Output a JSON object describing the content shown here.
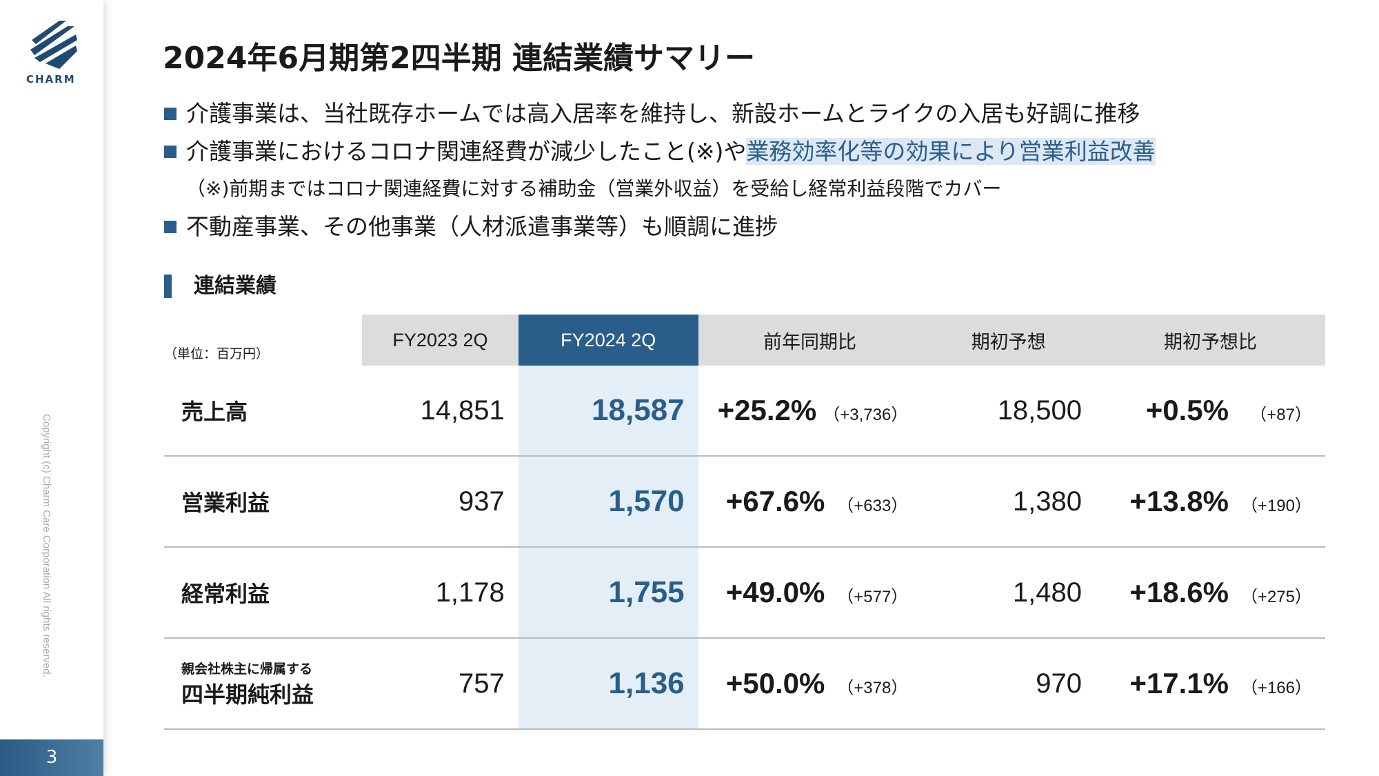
{
  "logo": "CHARM",
  "page_number": "3",
  "copyright": "Copyright (c) Charm Care Corporation All rights reserved.",
  "title": "2024年6月期第2四半期 連結業績サマリー",
  "bullets": [
    {
      "text": "介護事業は、当社既存ホームでは高入居率を維持し、新設ホームとライクの入居も好調に推移"
    },
    {
      "text": "介護事業におけるコロナ関連経費が減少したこと(※)や",
      "highlight": "業務効率化等の効果により営業利益改善",
      "note": "（※)前期まではコロナ関連経費に対する補助金（営業外収益）を受給し経常利益段階でカバー"
    },
    {
      "text": "不動産事業、その他事業（人材派遣事業等）も順調に進捗"
    }
  ],
  "section": "連結業績",
  "table": {
    "unit": "（単位：百万円）",
    "headers": [
      "FY2023 2Q",
      "FY2024 2Q",
      "前年同期比",
      "期初予想",
      "期初予想比"
    ],
    "rows": [
      {
        "label": "売上高",
        "cells": [
          "14,851",
          "18,587",
          "+25.2%",
          "（+3,736）",
          "18,500",
          "+0.5%",
          "（+87）"
        ]
      },
      {
        "label": "営業利益",
        "cells": [
          "937",
          "1,570",
          "+67.6%",
          "（+633）",
          "1,380",
          "+13.8%",
          "（+190）"
        ]
      },
      {
        "label": "経常利益",
        "cells": [
          "1,178",
          "1,755",
          "+49.0%",
          "（+577）",
          "1,480",
          "+18.6%",
          "（+275）"
        ]
      },
      {
        "sublabel": "親会社株主に帰属する",
        "label": "四半期純利益",
        "cells": [
          "757",
          "1,136",
          "+50.0%",
          "（+378）",
          "970",
          "+17.1%",
          "（+166）"
        ]
      }
    ]
  }
}
